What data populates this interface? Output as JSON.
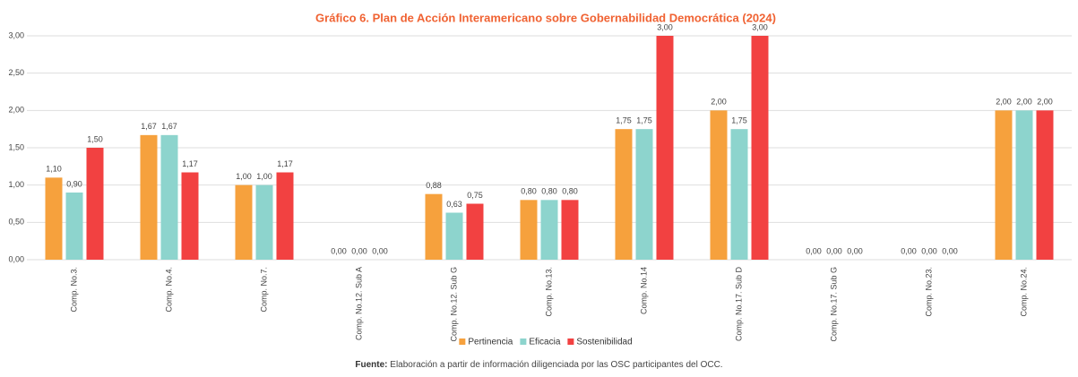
{
  "chart_data": {
    "type": "bar",
    "title": "Gráfico 6. Plan de Acción Interamericano sobre Gobernabilidad Democrática (2024)",
    "categories": [
      "Comp. No.3.",
      "Comp. No.4.",
      "Comp. No.7.",
      "Comp. No.12. Sub A",
      "Comp. No.12. Sub G",
      "Comp. No.13.",
      "Comp. No.14",
      "Comp. No.17. Sub D",
      "Comp. No.17. Sub G",
      "Comp. No.23.",
      "Comp. No.24."
    ],
    "series": [
      {
        "name": "Pertinencia",
        "color": "#f6a13d",
        "values": [
          1.1,
          1.67,
          1.0,
          0,
          0.88,
          0.8,
          1.75,
          2.0,
          0,
          0,
          2.0
        ],
        "value_labels": [
          "1,10",
          "1,67",
          "1,00",
          "0,00",
          "0,88",
          "0,80",
          "1,75",
          "2,00",
          "0,00",
          "0,00",
          "2,00"
        ]
      },
      {
        "name": "Eficacia",
        "color": "#8dd4cd",
        "values": [
          0.9,
          1.67,
          1.0,
          0,
          0.63,
          0.8,
          1.75,
          1.75,
          0,
          0,
          2.0
        ],
        "value_labels": [
          "0,90",
          "1,67",
          "1,00",
          "0,00",
          "0,63",
          "0,80",
          "1,75",
          "1,75",
          "0,00",
          "0,00",
          "2,00"
        ]
      },
      {
        "name": "Sostenibilidad",
        "color": "#f24141",
        "values": [
          1.5,
          1.17,
          1.17,
          0,
          0.75,
          0.8,
          3.0,
          3.0,
          0,
          0,
          2.0
        ],
        "value_labels": [
          "1,50",
          "1,17",
          "1,17",
          "0,00",
          "0,75",
          "0,80",
          "3,00",
          "3,00",
          "0,00",
          "0,00",
          "2,00"
        ]
      }
    ],
    "ylim": [
      0,
      3
    ],
    "yticks": [
      {
        "value": 0,
        "label": "0,00"
      },
      {
        "value": 0.5,
        "label": "0,50"
      },
      {
        "value": 1,
        "label": "1,00"
      },
      {
        "value": 1.5,
        "label": "1,50"
      },
      {
        "value": 2,
        "label": "2,00"
      },
      {
        "value": 2.5,
        "label": "2,50"
      },
      {
        "value": 3,
        "label": "3,00"
      }
    ],
    "grid": true,
    "legend": "bottom",
    "source_label": "Fuente:",
    "source_text": "Elaboración a partir de información diligenciada por las OSC participantes del OCC."
  }
}
